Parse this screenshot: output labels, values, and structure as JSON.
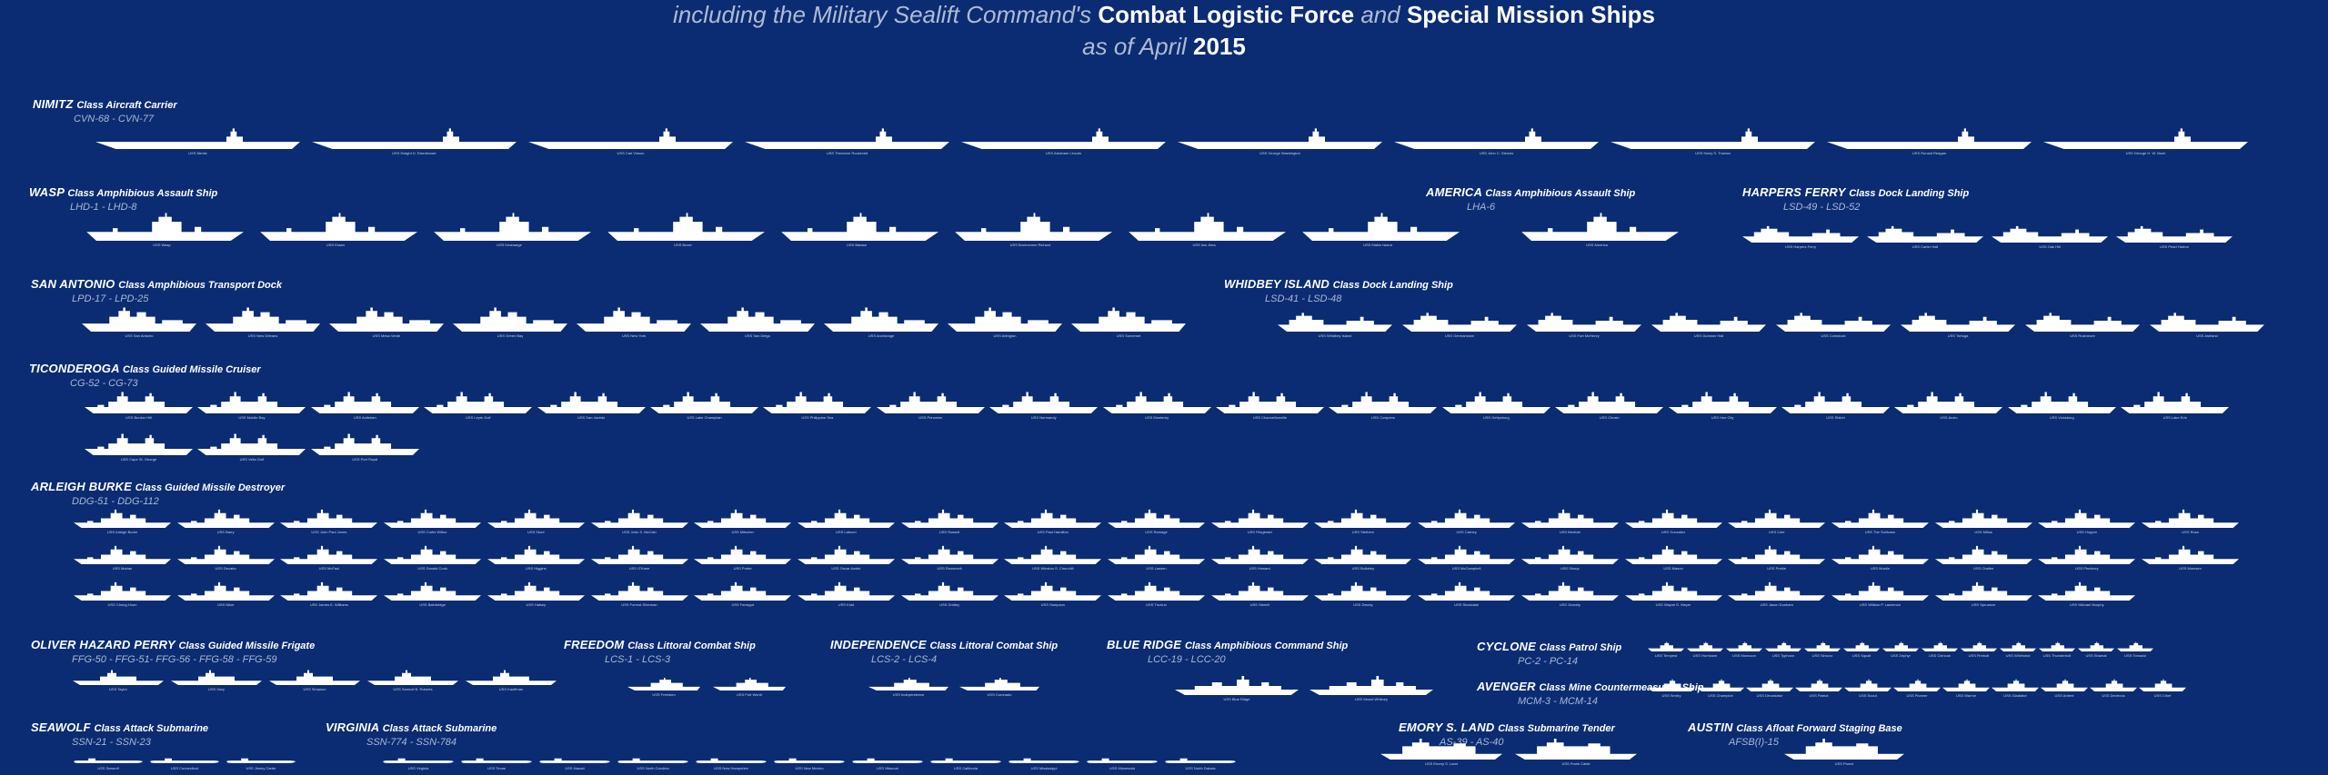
{
  "header": {
    "line1_prefix": "including the Military Sealift Command's",
    "line1_clf": "Combat Logistic Force",
    "line1_and": "and",
    "line1_sms": "Special Mission Ships",
    "line2_prefix": "as of April",
    "line2_year": "2015"
  },
  "classes": [
    {
      "id": "nimitz",
      "name": "NIMITZ",
      "desc": "Class Aircraft Carrier",
      "hulls": "CVN-68 - CVN-77",
      "ships": [
        "USS Nimitz",
        "USS Dwight D. Eisenhower",
        "USS Carl Vinson",
        "USS Theodore Roosevelt",
        "USS Abraham Lincoln",
        "USS George Washington",
        "USS John C. Stennis",
        "USS Harry S. Truman",
        "USS Ronald Reagan",
        "USS George H. W. Bush"
      ]
    },
    {
      "id": "wasp",
      "name": "WASP",
      "desc": "Class Amphibious Assault Ship",
      "hulls": "LHD-1 - LHD-8",
      "ships": [
        "USS Wasp",
        "USS Essex",
        "USS Kearsarge",
        "USS Boxer",
        "USS Bataan",
        "USS Bonhomme Richard",
        "USS Iwo Jima",
        "USS Makin Island"
      ]
    },
    {
      "id": "america",
      "name": "AMERICA",
      "desc": "Class Amphibious Assault Ship",
      "hulls": "LHA-6",
      "ships": [
        "USS America"
      ]
    },
    {
      "id": "harpers",
      "name": "HARPERS FERRY",
      "desc": "Class Dock Landing Ship",
      "hulls": "LSD-49 - LSD-52",
      "ships": [
        "USS Harpers Ferry",
        "USS Carter Hall",
        "USS Oak Hill",
        "USS Pearl Harbor"
      ]
    },
    {
      "id": "sanantonio",
      "name": "SAN ANTONIO",
      "desc": "Class Amphibious Transport Dock",
      "hulls": "LPD-17 - LPD-25",
      "ships": [
        "USS San Antonio",
        "USS New Orleans",
        "USS Mesa Verde",
        "USS Green Bay",
        "USS New York",
        "USS San Diego",
        "USS Anchorage",
        "USS Arlington",
        "USS Somerset"
      ]
    },
    {
      "id": "whidbey",
      "name": "WHIDBEY ISLAND",
      "desc": "Class Dock Landing Ship",
      "hulls": "LSD-41 - LSD-48",
      "ships": [
        "USS Whidbey Island",
        "USS Germantown",
        "USS Fort McHenry",
        "USS Gunston Hall",
        "USS Comstock",
        "USS Tortuga",
        "USS Rushmore",
        "USS Ashland"
      ]
    },
    {
      "id": "tico",
      "name": "TICONDEROGA",
      "desc": "Class Guided Missile Cruiser",
      "hulls": "CG-52 - CG-73",
      "ships": [
        "USS Bunker Hill",
        "USS Mobile Bay",
        "USS Antietam",
        "USS Leyte Gulf",
        "USS San Jacinto",
        "USS Lake Champlain",
        "USS Philippine Sea",
        "USS Princeton",
        "USS Normandy",
        "USS Monterey",
        "USS Chancellorsville",
        "USS Cowpens",
        "USS Gettysburg",
        "USS Chosin",
        "USS Hue City",
        "USS Shiloh",
        "USS Anzio",
        "USS Vicksburg",
        "USS Lake Erie",
        "USS Cape St. George",
        "USS Vella Gulf",
        "USS Port Royal"
      ]
    },
    {
      "id": "burke",
      "name": "ARLEIGH BURKE",
      "desc": "Class Guided Missile Destroyer",
      "hulls": "DDG-51 - DDG-112",
      "ships": [
        "USS Arleigh Burke",
        "USS Barry",
        "USS John Paul Jones",
        "USS Curtis Wilbur",
        "USS Stout",
        "USS John S. McCain",
        "USS Mitscher",
        "USS Laboon",
        "USS Russell",
        "USS Paul Hamilton",
        "USS Ramage",
        "USS Fitzgerald",
        "USS Stethem",
        "USS Carney",
        "USS Benfold",
        "USS Gonzalez",
        "USS Cole",
        "USS The Sullivans",
        "USS Milius",
        "USS Hopper",
        "USS Ross",
        "USS Mahan",
        "USS Decatur",
        "USS McFaul",
        "USS Donald Cook",
        "USS Higgins",
        "USS O'Kane",
        "USS Porter",
        "USS Oscar Austin",
        "USS Roosevelt",
        "USS Winston S. Churchill",
        "USS Lassen",
        "USS Howard",
        "USS Bulkeley",
        "USS McCampbell",
        "USS Shoup",
        "USS Mason",
        "USS Preble",
        "USS Mustin",
        "USS Chafee",
        "USS Pinckney",
        "USS Momsen",
        "USS Chung-Hoon",
        "USS Nitze",
        "USS James E. Williams",
        "USS Bainbridge",
        "USS Halsey",
        "USS Forrest Sherman",
        "USS Farragut",
        "USS Kidd",
        "USS Gridley",
        "USS Sampson",
        "USS Truxtun",
        "USS Sterett",
        "USS Dewey",
        "USS Stockdale",
        "USS Gravely",
        "USS Wayne E. Meyer",
        "USS Jason Dunham",
        "USS William P. Lawrence",
        "USS Spruance",
        "USS Michael Murphy"
      ]
    },
    {
      "id": "ohp",
      "name": "OLIVER HAZARD PERRY",
      "desc": "Class Guided Missile Frigate",
      "hulls": "FFG-50 - FFG-51- FFG-56 - FFG-58 - FFG-59",
      "ships": [
        "USS Taylor",
        "USS Gary",
        "USS Simpson",
        "USS Samuel B. Roberts",
        "USS Kauffman"
      ]
    },
    {
      "id": "freedom",
      "name": "FREEDOM",
      "desc": "Class Littoral Combat Ship",
      "hulls": "LCS-1 - LCS-3",
      "ships": [
        "USS Freedom",
        "USS Fort Worth"
      ]
    },
    {
      "id": "independence",
      "name": "INDEPENDENCE",
      "desc": "Class Littoral Combat Ship",
      "hulls": "LCS-2 - LCS-4",
      "ships": [
        "USS Independence",
        "USS Coronado"
      ]
    },
    {
      "id": "blueridge",
      "name": "BLUE RIDGE",
      "desc": "Class Amphibious Command Ship",
      "hulls": "LCC-19 - LCC-20",
      "ships": [
        "USS Blue Ridge",
        "USS Mount Whitney"
      ]
    },
    {
      "id": "cyclone",
      "name": "CYCLONE",
      "desc": "Class Patrol Ship",
      "hulls": "PC-2 - PC-14",
      "ships": [
        "USS Tempest",
        "USS Hurricane",
        "USS Monsoon",
        "USS Typhoon",
        "USS Sirocco",
        "USS Squall",
        "USS Zephyr",
        "USS Chinook",
        "USS Firebolt",
        "USS Whirlwind",
        "USS Thunderbolt",
        "USS Shamal",
        "USS Tornado"
      ]
    },
    {
      "id": "avenger",
      "name": "AVENGER",
      "desc": "Class Mine Countermeasures Ship",
      "hulls": "MCM-3 - MCM-14",
      "ships": [
        "USS Sentry",
        "USS Champion",
        "USS Devastator",
        "USS Patriot",
        "USS Scout",
        "USS Pioneer",
        "USS Warrior",
        "USS Gladiator",
        "USS Ardent",
        "USS Dextrous",
        "USS Chief"
      ]
    },
    {
      "id": "seawolf",
      "name": "SEAWOLF",
      "desc": "Class Attack Submarine",
      "hulls": "SSN-21 - SSN-23",
      "ships": [
        "USS Seawolf",
        "USS Connecticut",
        "USS Jimmy Carter"
      ]
    },
    {
      "id": "virginia",
      "name": "VIRGINIA",
      "desc": "Class Attack Submarine",
      "hulls": "SSN-774 - SSN-784",
      "ships": [
        "USS Virginia",
        "USS Texas",
        "USS Hawaii",
        "USS North Carolina",
        "USS New Hampshire",
        "USS New Mexico",
        "USS Missouri",
        "USS California",
        "USS Mississippi",
        "USS Minnesota",
        "USS North Dakota"
      ]
    },
    {
      "id": "emory",
      "name": "EMORY S. LAND",
      "desc": "Class  Submarine Tender",
      "hulls": "AS-39 - AS-40",
      "ships": [
        "USS Emory S. Land",
        "USS Frank Cable"
      ]
    },
    {
      "id": "austin",
      "name": "AUSTIN",
      "desc": "Class  Afloat Forward Staging Base",
      "hulls": "AFSB(I)-15",
      "ships": [
        "USS Ponce"
      ]
    }
  ]
}
